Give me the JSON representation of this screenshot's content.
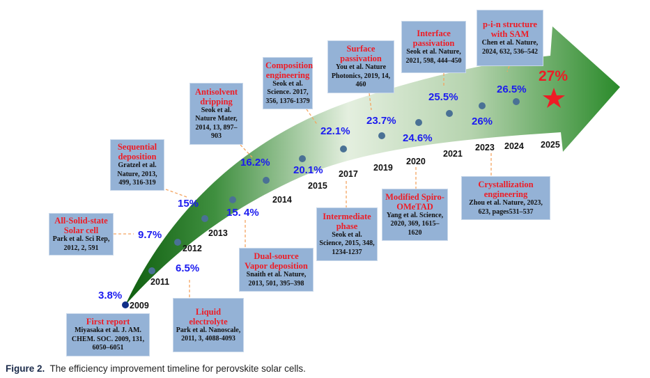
{
  "colors": {
    "box": "#94b2d6",
    "title": "#ee1c25",
    "percent": "#1b1bf0",
    "arrow_dark": "#1e6e1e",
    "arrow_light": "#e4efdf"
  },
  "points": [
    {
      "year": "2009",
      "pct": "3.8%"
    },
    {
      "year": "2011",
      "pct": "6.5%"
    },
    {
      "year": "2012",
      "pct": "9.7%"
    },
    {
      "year": "2013",
      "pct": "15%"
    },
    {
      "year": "2014",
      "pct": "15. 4%"
    },
    {
      "year": "2015",
      "pct": "16.2%"
    },
    {
      "year": "2017",
      "pct": "20.1%"
    },
    {
      "year": "2019",
      "pct": "22.1%"
    },
    {
      "year": "2020",
      "pct": "23.7%"
    },
    {
      "year": "2021",
      "pct": "24.6%"
    },
    {
      "year": "2023",
      "pct": "25.5%"
    },
    {
      "year": "2024",
      "pct": "26%"
    },
    {
      "year": "2025",
      "pct": "26.5%"
    }
  ],
  "target": {
    "pct": "27%",
    "icon": "star-icon"
  },
  "boxes": [
    {
      "title": "First report",
      "body": "Miyasaka et al. J. AM. CHEM. SOC. 2009, 131, 6050–6051"
    },
    {
      "title": "Liquid electrolyte",
      "body": "Park et al. Nanoscale, 2011, 3, 4088-4093"
    },
    {
      "title": "All-Solid-state Solar cell",
      "body": "Park et al. Sci Rep, 2012, 2, 591"
    },
    {
      "title": "Sequential deposition",
      "body": "Gratzel et al. Nature, 2013, 499, 316-319"
    },
    {
      "title": "Antisolvent dripping",
      "body": "Seok et al. Nature Mater, 2014, 13, 897–903"
    },
    {
      "title": "Dual-source Vapor deposition",
      "body": "Snaith et al. Nature, 2013, 501, 395–398"
    },
    {
      "title": "Composition engineering",
      "body": "Seok et al. Science. 2017, 356, 1376-1379"
    },
    {
      "title": "Intermediate phase",
      "body": "Seok et al. Science, 2015, 348, 1234-1237"
    },
    {
      "title": "Surface passivation",
      "body": "You et al. Nature Photonics, 2019, 14, 460"
    },
    {
      "title": "Modified Spiro-OMeTAD",
      "body": "Yang et al. Science, 2020, 369, 1615–1620"
    },
    {
      "title": "Interface passivation",
      "body": "Seok et al. Nature, 2021, 598, 444–450"
    },
    {
      "title": "Crystallization engineering",
      "body": "Zhou et al. Nature, 2023, 623, pages531–537"
    },
    {
      "title": "p-i-n structure with SAM",
      "body": "Chen et al. Nature, 2024, 632, 536–542"
    }
  ],
  "caption": {
    "label": "Figure 2.",
    "text": "The efficiency improvement timeline for perovskite solar cells."
  }
}
